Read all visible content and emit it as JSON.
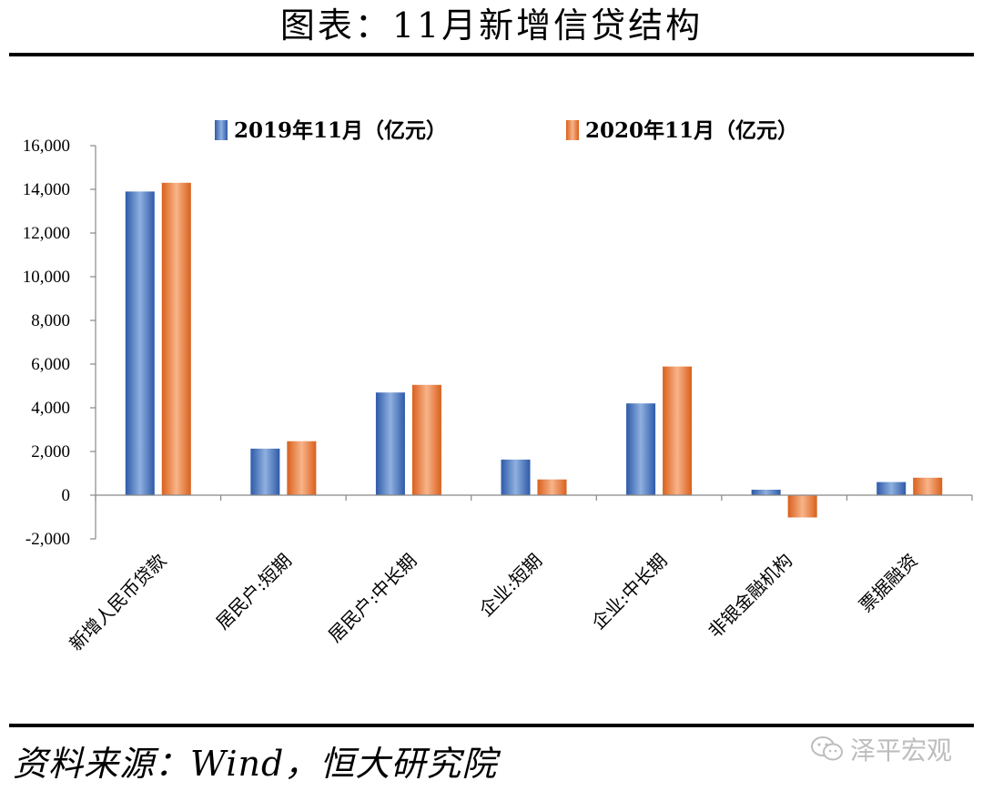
{
  "header": {
    "title": "图表：11月新增信贷结构"
  },
  "footer": {
    "source": "资料来源：Wind，恒大研究院",
    "watermark": "泽平宏观",
    "watermark_icon": "wechat-icon"
  },
  "colors": {
    "series_2019": "#4472C4",
    "series_2020": "#ED7D31"
  },
  "chart_data": {
    "type": "bar",
    "categories": [
      "新增人民币贷款",
      "居民户:短期",
      "居民户:中长期",
      "企业:短期",
      "企业:中长期",
      "非银金融机构",
      "票据融资"
    ],
    "series": [
      {
        "name": "2019年11月（亿元）",
        "values": [
          13900,
          2130,
          4700,
          1630,
          4200,
          250,
          600
        ]
      },
      {
        "name": "2020年11月（亿元）",
        "values": [
          14300,
          2470,
          5050,
          720,
          5890,
          -1020,
          800
        ]
      }
    ],
    "ylim": [
      -2000,
      16000
    ],
    "yticks": [
      "-2,000",
      "0",
      "2,000",
      "4,000",
      "6,000",
      "8,000",
      "10,000",
      "12,000",
      "14,000",
      "16,000"
    ],
    "legend_position": "top",
    "grid": false
  }
}
